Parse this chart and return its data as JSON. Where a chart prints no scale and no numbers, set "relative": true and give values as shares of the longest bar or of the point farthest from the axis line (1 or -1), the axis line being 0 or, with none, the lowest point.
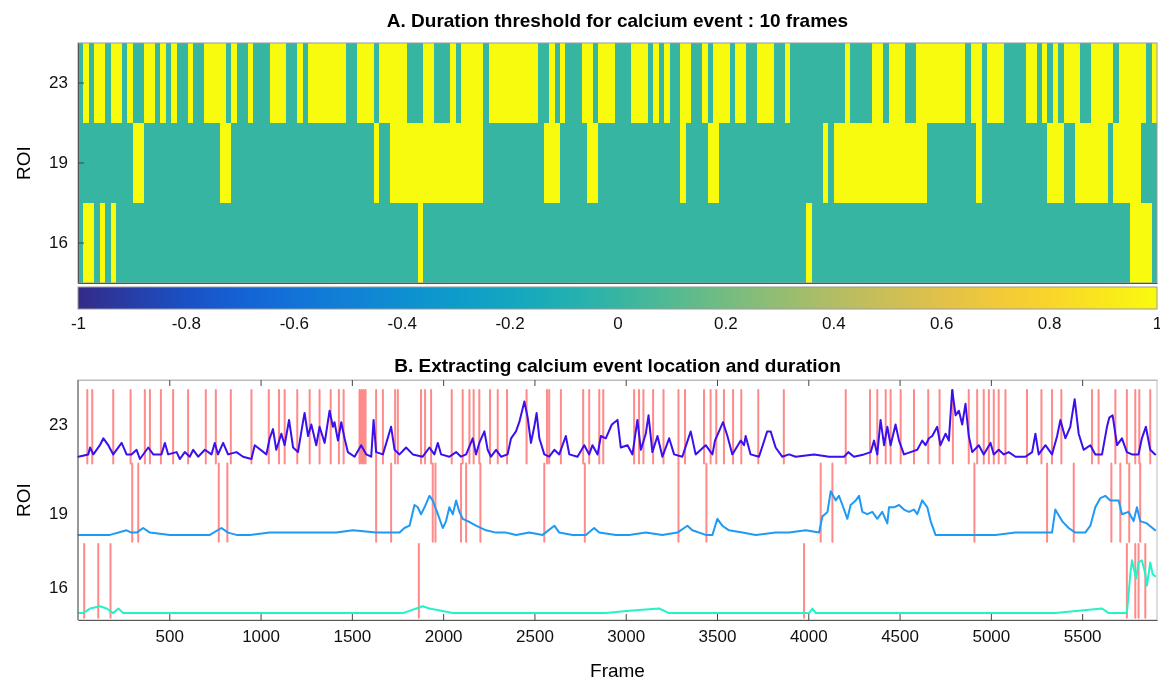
{
  "chart_data": [
    {
      "type": "heatmap",
      "title": "A. Duration threshold for calcium event : 10 frames",
      "ylabel": "ROI",
      "categories": [
        null,
        null,
        null,
        null,
        null,
        null,
        null,
        null,
        null,
        null,
        null,
        null,
        null,
        null,
        null,
        null,
        null,
        null,
        null,
        null,
        null,
        null,
        null,
        null,
        null,
        null,
        null,
        null,
        null,
        null,
        null,
        null,
        null,
        null,
        null,
        null,
        null,
        null,
        null,
        null,
        null,
        null,
        null,
        null,
        null,
        null,
        null,
        null,
        null,
        null,
        null,
        null,
        null,
        null,
        null,
        null,
        null,
        null,
        null,
        null,
        null,
        null,
        null,
        null,
        null,
        null,
        null,
        null,
        null,
        null,
        null,
        null,
        null,
        null,
        null,
        null,
        null,
        null,
        null,
        null,
        null,
        null,
        null,
        null,
        null,
        null,
        null,
        null,
        null,
        null,
        null,
        null,
        null,
        null,
        null,
        null,
        null,
        null,
        null,
        null,
        null,
        null,
        null,
        null,
        null,
        null,
        null,
        null,
        null,
        null,
        null,
        null,
        null,
        null,
        null,
        null,
        null,
        null,
        null,
        null,
        null,
        null,
        null,
        null,
        null,
        null,
        null,
        null,
        null,
        null,
        null,
        null,
        null,
        null,
        null,
        null,
        null,
        null,
        null,
        null,
        null,
        null,
        null,
        null,
        null,
        null,
        null,
        null,
        null,
        null,
        null,
        null,
        null,
        null,
        null,
        null,
        null,
        null,
        null,
        null,
        null,
        null,
        null,
        null,
        null,
        null,
        null,
        null,
        null,
        null,
        null,
        null,
        null,
        null,
        null,
        null,
        null,
        null,
        null,
        null,
        null,
        null,
        null,
        null,
        null,
        null,
        null,
        null,
        null,
        null,
        null,
        null,
        null,
        null,
        null,
        null,
        null
      ],
      "y_categories": [
        "23",
        "19",
        "16"
      ],
      "cells": [
        [
          0,
          1,
          0,
          1,
          1,
          0,
          1,
          1,
          0,
          1,
          0,
          0,
          1,
          1,
          0,
          1,
          0,
          1,
          0,
          0,
          1,
          0,
          0,
          1,
          1,
          1,
          1,
          0,
          1,
          0,
          0,
          1,
          0,
          0,
          0,
          1,
          1,
          1,
          0,
          0,
          1,
          0,
          1,
          1,
          1,
          1,
          1,
          1,
          1,
          0,
          0,
          1,
          1,
          1,
          0,
          1,
          1,
          1,
          1,
          1,
          0,
          0,
          0,
          1,
          1,
          0,
          0,
          0,
          1,
          0,
          1,
          1,
          1,
          1,
          0,
          1,
          1,
          1,
          1,
          1,
          1,
          1,
          1,
          1,
          0,
          0,
          1,
          0,
          1,
          0,
          0,
          0,
          1,
          1,
          0,
          1,
          1,
          1,
          0,
          0,
          0,
          1,
          1,
          1,
          0,
          1,
          0,
          1,
          0,
          0,
          1,
          1,
          0,
          0,
          1,
          0,
          1,
          1,
          1,
          0,
          1,
          1,
          0,
          0,
          1,
          1,
          1,
          0,
          0,
          1,
          0,
          0,
          0,
          0,
          0,
          0,
          0,
          0,
          0,
          0,
          1,
          0,
          0,
          0,
          0,
          1,
          1,
          0,
          1,
          1,
          1,
          0,
          0,
          1,
          1,
          1,
          1,
          1,
          1,
          1,
          1,
          1,
          0,
          1,
          1,
          0,
          1,
          1,
          1,
          0,
          0,
          0,
          0,
          1,
          1,
          0,
          1,
          0,
          1,
          0,
          1,
          1,
          1,
          0,
          0,
          1,
          1,
          1,
          1,
          0,
          1,
          1,
          1,
          1,
          1,
          0,
          1
        ],
        [
          0,
          0,
          0,
          0,
          0,
          0,
          0,
          0,
          0,
          0,
          1,
          1,
          0,
          0,
          0,
          0,
          0,
          0,
          0,
          0,
          0,
          0,
          0,
          0,
          0,
          0,
          1,
          1,
          0,
          0,
          0,
          0,
          0,
          0,
          0,
          0,
          0,
          0,
          0,
          0,
          0,
          0,
          0,
          0,
          0,
          0,
          0,
          0,
          0,
          0,
          0,
          0,
          0,
          0,
          1,
          0,
          0,
          1,
          1,
          1,
          1,
          1,
          1,
          1,
          1,
          1,
          1,
          1,
          1,
          1,
          1,
          1,
          1,
          1,
          0,
          0,
          0,
          0,
          0,
          0,
          0,
          0,
          0,
          0,
          0,
          1,
          1,
          1,
          0,
          0,
          0,
          0,
          0,
          1,
          1,
          0,
          0,
          0,
          0,
          0,
          0,
          0,
          0,
          0,
          0,
          0,
          0,
          0,
          0,
          0,
          1,
          0,
          0,
          0,
          0,
          1,
          1,
          0,
          0,
          0,
          0,
          0,
          0,
          0,
          0,
          0,
          0,
          0,
          0,
          0,
          0,
          0,
          0,
          0,
          0,
          0,
          1,
          0,
          1,
          1,
          1,
          1,
          1,
          1,
          1,
          1,
          1,
          1,
          1,
          1,
          1,
          1,
          1,
          1,
          1,
          0,
          0,
          0,
          0,
          0,
          0,
          0,
          0,
          0,
          1,
          0,
          0,
          0,
          0,
          0,
          0,
          0,
          0,
          0,
          0,
          0,
          0,
          1,
          1,
          1,
          0,
          0,
          1,
          1,
          1,
          1,
          1,
          1,
          0,
          1,
          1,
          1,
          1,
          1,
          0,
          0,
          0
        ],
        [
          0,
          1,
          1,
          0,
          1,
          0,
          1,
          0,
          0,
          0,
          0,
          0,
          0,
          0,
          0,
          0,
          0,
          0,
          0,
          0,
          0,
          0,
          0,
          0,
          0,
          0,
          0,
          0,
          0,
          0,
          0,
          0,
          0,
          0,
          0,
          0,
          0,
          0,
          0,
          0,
          0,
          0,
          0,
          0,
          0,
          0,
          0,
          0,
          0,
          0,
          0,
          0,
          0,
          0,
          0,
          0,
          0,
          0,
          0,
          0,
          0,
          0,
          1,
          0,
          0,
          0,
          0,
          0,
          0,
          0,
          0,
          0,
          0,
          0,
          0,
          0,
          0,
          0,
          0,
          0,
          0,
          0,
          0,
          0,
          0,
          0,
          0,
          0,
          0,
          0,
          0,
          0,
          0,
          0,
          0,
          0,
          0,
          0,
          0,
          0,
          0,
          0,
          0,
          0,
          0,
          0,
          0,
          0,
          0,
          0,
          0,
          0,
          0,
          0,
          0,
          0,
          0,
          0,
          0,
          0,
          0,
          0,
          0,
          0,
          0,
          0,
          0,
          0,
          0,
          0,
          0,
          0,
          0,
          1,
          0,
          0,
          0,
          0,
          0,
          0,
          0,
          0,
          0,
          0,
          0,
          0,
          0,
          0,
          0,
          0,
          0,
          0,
          0,
          0,
          0,
          0,
          0,
          0,
          0,
          0,
          0,
          0,
          0,
          0,
          0,
          0,
          0,
          0,
          0,
          0,
          0,
          0,
          0,
          0,
          0,
          0,
          0,
          0,
          0,
          0,
          0,
          0,
          0,
          0,
          0,
          0,
          0,
          0,
          0,
          0,
          0,
          0,
          1,
          1,
          1,
          1,
          0
        ]
      ],
      "clim": [
        -1,
        1
      ],
      "cticks": [
        -1,
        -0.8,
        -0.6,
        -0.4,
        -0.2,
        0,
        0.2,
        0.4,
        0.6,
        0.8,
        1
      ]
    },
    {
      "type": "line",
      "title": "B. Extracting calcium event location and duration",
      "xlabel": "Frame",
      "ylabel": "ROI",
      "relative": true,
      "xlim": [
        0,
        5910
      ],
      "xticks": [
        500,
        1000,
        1500,
        2000,
        2500,
        3000,
        3500,
        4000,
        4500,
        5000,
        5500
      ],
      "series": [
        {
          "color": "#ff8a8a",
          "x": [
            51,
            51,
            null,
            78,
            78,
            null,
            193,
            193,
            null,
            288,
            288,
            null,
            366,
            366,
            null,
            394,
            394,
            null,
            454,
            454,
            null,
            521,
            521,
            null,
            603,
            603,
            null,
            700,
            700,
            null,
            755,
            755,
            null,
            837,
            837,
            null,
            950,
            950,
            null,
            1045,
            1045,
            null,
            1101,
            1101,
            null,
            1132,
            1132,
            null,
            1201,
            1201,
            null,
            1269,
            1269,
            null,
            1323,
            1323,
            null,
            1384,
            1384,
            null,
            1429,
            1429,
            null,
            1455,
            1455,
            null,
            1542,
            1542,
            null,
            1553,
            1553,
            null,
            1564,
            1564,
            null,
            1575,
            1575,
            null,
            1633,
            1633,
            null,
            1670,
            1670,
            null,
            1737,
            1737,
            null,
            1752,
            1752,
            null,
            1879,
            1879,
            null,
            1901,
            1901,
            null,
            1934,
            1934,
            null,
            2047,
            2047,
            null,
            2107,
            2107,
            null,
            2144,
            2144,
            null,
            2167,
            2167,
            null,
            2198,
            2198,
            null,
            2257,
            2257,
            null,
            2299,
            2299,
            null,
            2350,
            2350,
            null,
            2457,
            2457,
            null,
            2569,
            2569,
            null,
            2581,
            2581,
            null,
            2645,
            2645,
            null,
            2767,
            2767,
            null,
            2800,
            2800,
            null,
            2855,
            2855,
            null,
            2877,
            2877,
            null,
            3046,
            3046,
            null,
            3073,
            3073,
            null,
            3097,
            3097,
            null,
            3150,
            3150,
            null,
            3207,
            3207,
            null,
            3289,
            3289,
            null,
            3325,
            3325,
            null,
            3429,
            3429,
            null,
            3465,
            3465,
            null,
            3496,
            3496,
            null,
            3538,
            3538,
            null,
            3588,
            3588,
            null,
            3633,
            3633,
            null,
            3726,
            3726,
            null,
            3866,
            3866,
            null,
            4205,
            4205,
            null,
            4338,
            4338,
            null,
            4378,
            4378,
            null,
            4424,
            4424,
            null,
            4451,
            4451,
            null,
            4506,
            4506,
            null,
            4579,
            4579,
            null,
            4657,
            4657,
            null,
            4719,
            4719,
            null,
            4792,
            4792,
            null,
            4879,
            4879,
            null,
            4925,
            4925,
            null,
            4961,
            4961,
            null,
            4989,
            4989,
            null,
            5016,
            5016,
            null,
            5043,
            5043,
            null,
            5080,
            5080,
            null,
            5198,
            5198,
            null,
            5277,
            5277,
            null,
            5335,
            5335,
            null,
            5386,
            5386,
            null,
            5554,
            5554,
            null,
            5590,
            5590,
            null,
            5682,
            5682,
            null,
            5745,
            5745,
            null,
            5791,
            5791,
            null,
            5813,
            5813,
            null,
            5873,
            5873
          ],
          "values": [
            0.68,
            1,
            null,
            0.68,
            1,
            null,
            0.68,
            1,
            null,
            0.68,
            1,
            null,
            0.68,
            1,
            null,
            0.68,
            1,
            null,
            0.68,
            1,
            null,
            0.68,
            1,
            null,
            0.68,
            1,
            null,
            0.68,
            1,
            null,
            0.68,
            1,
            null,
            0.68,
            1,
            null,
            0.68,
            1,
            null,
            0.68,
            1,
            null,
            0.68,
            1,
            null,
            0.68,
            1,
            null,
            0.68,
            1,
            null,
            0.68,
            1,
            null,
            0.68,
            1,
            null,
            0.68,
            1,
            null,
            0.68,
            1,
            null,
            0.68,
            1,
            null,
            0.68,
            1,
            null,
            0.68,
            1,
            null,
            0.68,
            1,
            null,
            0.68,
            1,
            null,
            0.68,
            1,
            null,
            0.68,
            1,
            null,
            0.68,
            1,
            null,
            0.68,
            1,
            null,
            0.68,
            1,
            null,
            0.68,
            1,
            null,
            0.68,
            1,
            null,
            0.68,
            1,
            null,
            0.68,
            1,
            null,
            0.68,
            1,
            null,
            0.68,
            1,
            null,
            0.68,
            1,
            null,
            0.68,
            1,
            null,
            0.68,
            1,
            null,
            0.68,
            1,
            null,
            0.68,
            1,
            null,
            0.68,
            1,
            null,
            0.68,
            1,
            null,
            0.68,
            1,
            null,
            0.68,
            1,
            null,
            0.68,
            1,
            null,
            0.68,
            1,
            null,
            0.68,
            1,
            null,
            0.68,
            1,
            null,
            0.68,
            1,
            null,
            0.68,
            1,
            null,
            0.68,
            1,
            null,
            0.68,
            1,
            null,
            0.68,
            1,
            null,
            0.68,
            1,
            null,
            0.68,
            1,
            null,
            0.68,
            1,
            null,
            0.68,
            1,
            null,
            0.68,
            1,
            null,
            0.68,
            1,
            null,
            0.68,
            1,
            null,
            0.68,
            1,
            null,
            0.68,
            1,
            null,
            0.68,
            1,
            null,
            0.68,
            1,
            null,
            0.68,
            1,
            null,
            0.68,
            1,
            null,
            0.68,
            1,
            null,
            0.68,
            1,
            null,
            0.68,
            1,
            null,
            0.68,
            1,
            null,
            0.68,
            1,
            null,
            0.68,
            1,
            null,
            0.68,
            1,
            null,
            0.68,
            1,
            null,
            0.68,
            1,
            null,
            0.68,
            1,
            null,
            0.68,
            1,
            null,
            0.68,
            1,
            null,
            0.68,
            1,
            null,
            0.68,
            1,
            null,
            0.68,
            1,
            null,
            0.68,
            1,
            null,
            0.68,
            1,
            null,
            0.68,
            1,
            null,
            0.68,
            1,
            null,
            0.68,
            1,
            null,
            0.68,
            1,
            null,
            0.68,
            1,
            null,
            0.68,
            1,
            null,
            0.68,
            1
          ]
        },
        {
          "color": "#ff8a8a",
          "x": [
            297,
            297,
            null,
            330,
            330,
            null,
            771,
            771,
            null,
            818,
            818,
            null,
            1633,
            1633,
            null,
            1715,
            1715,
            null,
            1943,
            1943,
            null,
            1958,
            1958,
            null,
            2098,
            2098,
            null,
            2126,
            2126,
            null,
            2204,
            2204,
            null,
            2554,
            2554,
            null,
            2776,
            2776,
            null,
            3289,
            3289,
            null,
            3442,
            3442,
            null,
            4068,
            4068,
            null,
            4132,
            4132,
            null,
            4910,
            4910,
            null,
            5308,
            5308,
            null,
            5454,
            5454,
            null,
            5660,
            5660,
            null,
            5709,
            5709,
            null,
            5758,
            5758,
            null,
            5818,
            5818
          ],
          "values": [
            0.34,
            0.68,
            null,
            0.34,
            0.68,
            null,
            0.34,
            0.68,
            null,
            0.34,
            0.68,
            null,
            0.34,
            0.68,
            null,
            0.34,
            0.68,
            null,
            0.34,
            0.68,
            null,
            0.34,
            0.68,
            null,
            0.34,
            0.68,
            null,
            0.34,
            0.68,
            null,
            0.34,
            0.68,
            null,
            0.34,
            0.68,
            null,
            0.34,
            0.68,
            null,
            0.34,
            0.68,
            null,
            0.34,
            0.68,
            null,
            0.34,
            0.68,
            null,
            0.34,
            0.68,
            null,
            0.34,
            0.68,
            null,
            0.34,
            0.68,
            null,
            0.34,
            0.68,
            null,
            0.34,
            0.68,
            null,
            0.34,
            0.68,
            null,
            0.34,
            0.68,
            null,
            0.34,
            0.68
          ]
        },
        {
          "color": "#ff8a8a",
          "x": [
            34,
            34,
            null,
            111,
            111,
            null,
            178,
            178,
            null,
            1867,
            1867,
            null,
            3977,
            3977,
            null,
            5745,
            5745,
            null,
            5791,
            5791,
            null,
            5809,
            5809,
            null,
            5846,
            5846
          ],
          "values": [
            0.01,
            0.33,
            null,
            0.01,
            0.33,
            null,
            0.01,
            0.33,
            null,
            0.01,
            0.33,
            null,
            0.01,
            0.33,
            null,
            0.01,
            0.33,
            null,
            0.01,
            0.33,
            null,
            0.01,
            0.33,
            null,
            0.01,
            0.33
          ]
        },
        {
          "name": "23",
          "color": "#3a10ee",
          "x": [
            2,
            56,
            66,
            84,
            120,
            139,
            166,
            193,
            239,
            266,
            293,
            321,
            339,
            385,
            412,
            457,
            476,
            494,
            540,
            558,
            585,
            612,
            631,
            658,
            695,
            731,
            749,
            767,
            795,
            822,
            868,
            904,
            950,
            968,
            1032,
            1050,
            1068,
            1086,
            1114,
            1132,
            1156,
            1178,
            1205,
            1232,
            1241,
            1260,
            1278,
            1305,
            1323,
            1351,
            1378,
            1396,
            1405,
            1424,
            1442,
            1460,
            1478,
            1515,
            1551,
            1579,
            1606,
            1619,
            1633,
            1670,
            1715,
            1734,
            1761,
            1797,
            1834,
            1888,
            1925,
            1952,
            1971,
            1989,
            2034,
            2071,
            2098,
            2126,
            2162,
            2180,
            2198,
            2226,
            2244,
            2262,
            2290,
            2317,
            2353,
            2372,
            2399,
            2417,
            2445,
            2463,
            2481,
            2499,
            2512,
            2527,
            2554,
            2581,
            2609,
            2636,
            2672,
            2691,
            2736,
            2773,
            2800,
            2818,
            2846,
            2864,
            2891,
            2924,
            2955,
            2973,
            3010,
            3037,
            3064,
            3083,
            3110,
            3125,
            3146,
            3174,
            3201,
            3238,
            3265,
            3310,
            3356,
            3383,
            3438,
            3475,
            3489,
            3533,
            3557,
            3584,
            3630,
            3648,
            3657,
            3684,
            3730,
            3775,
            3794,
            3821,
            3857,
            3895,
            3931,
            4032,
            4114,
            4196,
            4219,
            4250,
            4305,
            4342,
            4360,
            4378,
            4396,
            4415,
            4433,
            4451,
            4478,
            4497,
            4524,
            4560,
            4597,
            4624,
            4642,
            4661,
            4679,
            4706,
            4724,
            4752,
            4770,
            4788,
            4807,
            4825,
            4843,
            4861,
            4879,
            4898,
            4934,
            4961,
            4998,
            5016,
            5043,
            5071,
            5098,
            5135,
            5189,
            5226,
            5244,
            5262,
            5299,
            5335,
            5363,
            5381,
            5408,
            5435,
            5459,
            5481,
            5508,
            5545,
            5572,
            5609,
            5636,
            5649,
            5667,
            5691,
            5718,
            5745,
            5773,
            5809,
            5827,
            5849,
            5873,
            5900
          ],
          "values": [
            0.71,
            0.72,
            0.75,
            0.72,
            0.76,
            0.79,
            0.76,
            0.72,
            0.77,
            0.72,
            0.72,
            0.74,
            0.7,
            0.75,
            0.72,
            0.72,
            0.77,
            0.72,
            0.73,
            0.7,
            0.73,
            0.71,
            0.74,
            0.71,
            0.74,
            0.72,
            0.77,
            0.72,
            0.77,
            0.72,
            0.73,
            0.71,
            0.7,
            0.76,
            0.72,
            0.79,
            0.83,
            0.74,
            0.81,
            0.76,
            0.87,
            0.75,
            0.73,
            0.86,
            0.9,
            0.8,
            0.85,
            0.76,
            0.84,
            0.77,
            0.91,
            0.84,
            0.86,
            0.78,
            0.86,
            0.79,
            0.73,
            0.71,
            0.76,
            0.72,
            0.71,
            0.87,
            0.73,
            0.72,
            0.84,
            0.74,
            0.72,
            0.75,
            0.72,
            0.71,
            0.75,
            0.72,
            0.77,
            0.72,
            0.71,
            0.73,
            0.71,
            0.72,
            0.79,
            0.72,
            0.77,
            0.82,
            0.74,
            0.71,
            0.74,
            0.71,
            0.72,
            0.79,
            0.82,
            0.86,
            0.95,
            0.88,
            0.77,
            0.84,
            0.9,
            0.79,
            0.72,
            0.71,
            0.74,
            0.72,
            0.8,
            0.72,
            0.71,
            0.76,
            0.72,
            0.76,
            0.72,
            0.8,
            0.79,
            0.85,
            0.87,
            0.75,
            0.76,
            0.72,
            0.87,
            0.74,
            0.81,
            0.89,
            0.73,
            0.8,
            0.71,
            0.79,
            0.72,
            0.71,
            0.82,
            0.72,
            0.76,
            0.72,
            0.78,
            0.86,
            0.8,
            0.72,
            0.78,
            0.76,
            0.8,
            0.72,
            0.71,
            0.82,
            0.82,
            0.75,
            0.71,
            0.72,
            0.71,
            0.72,
            0.71,
            0.71,
            0.73,
            0.71,
            0.72,
            0.73,
            0.78,
            0.72,
            0.87,
            0.76,
            0.84,
            0.76,
            0.85,
            0.78,
            0.72,
            0.73,
            0.74,
            0.78,
            0.76,
            0.79,
            0.8,
            0.84,
            0.76,
            0.81,
            0.78,
            1,
            0.89,
            0.91,
            0.85,
            0.94,
            0.8,
            0.73,
            0.76,
            0.72,
            0.77,
            0.72,
            0.74,
            0.72,
            0.73,
            0.71,
            0.71,
            0.73,
            0.81,
            0.72,
            0.76,
            0.72,
            0.8,
            0.87,
            0.79,
            0.84,
            0.96,
            0.81,
            0.74,
            0.76,
            0.72,
            0.72,
            0.84,
            0.88,
            0.89,
            0.76,
            0.79,
            0.73,
            0.72,
            0.72,
            0.79,
            0.84,
            0.74,
            0.72
          ]
        },
        {
          "name": "19",
          "color": "#1e9af5",
          "x": [
            2,
            66,
            175,
            266,
            293,
            321,
            357,
            394,
            503,
            594,
            722,
            786,
            822,
            868,
            941,
            1050,
            1232,
            1414,
            1506,
            1633,
            1761,
            1788,
            1816,
            1843,
            1861,
            1879,
            1898,
            1925,
            1943,
            1971,
            1998,
            2016,
            2034,
            2053,
            2071,
            2089,
            2107,
            2135,
            2180,
            2235,
            2290,
            2344,
            2399,
            2472,
            2545,
            2609,
            2636,
            2709,
            2782,
            2827,
            2855,
            2946,
            3019,
            3110,
            3201,
            3283,
            3338,
            3365,
            3438,
            3475,
            3502,
            3529,
            3566,
            3639,
            3712,
            3821,
            3895,
            3986,
            4059,
            4077,
            4105,
            4123,
            4150,
            4168,
            4187,
            4214,
            4232,
            4260,
            4278,
            4296,
            4323,
            4351,
            4378,
            4405,
            4433,
            4442,
            4469,
            4497,
            4524,
            4551,
            4579,
            4597,
            4624,
            4652,
            4670,
            4697,
            4807,
            4916,
            5025,
            5135,
            5244,
            5335,
            5353,
            5390,
            5426,
            5463,
            5517,
            5545,
            5572,
            5600,
            5627,
            5654,
            5672,
            5700,
            5718,
            5754,
            5782,
            5800,
            5818,
            5855,
            5900
          ],
          "values": [
            0.37,
            0.37,
            0.37,
            0.39,
            0.38,
            0.38,
            0.4,
            0.38,
            0.37,
            0.37,
            0.37,
            0.4,
            0.38,
            0.37,
            0.37,
            0.38,
            0.38,
            0.38,
            0.39,
            0.38,
            0.38,
            0.4,
            0.41,
            0.5,
            0.49,
            0.46,
            0.49,
            0.54,
            0.52,
            0.46,
            0.4,
            0.43,
            0.49,
            0.46,
            0.52,
            0.47,
            0.44,
            0.43,
            0.41,
            0.39,
            0.38,
            0.38,
            0.37,
            0.38,
            0.37,
            0.41,
            0.38,
            0.37,
            0.37,
            0.4,
            0.38,
            0.37,
            0.37,
            0.38,
            0.37,
            0.38,
            0.41,
            0.39,
            0.37,
            0.37,
            0.44,
            0.41,
            0.39,
            0.38,
            0.37,
            0.38,
            0.38,
            0.39,
            0.38,
            0.45,
            0.47,
            0.56,
            0.52,
            0.54,
            0.5,
            0.44,
            0.5,
            0.52,
            0.54,
            0.47,
            0.46,
            0.47,
            0.44,
            0.47,
            0.42,
            0.49,
            0.49,
            0.5,
            0.48,
            0.47,
            0.48,
            0.46,
            0.52,
            0.49,
            0.43,
            0.37,
            0.37,
            0.37,
            0.37,
            0.38,
            0.38,
            0.38,
            0.48,
            0.43,
            0.4,
            0.38,
            0.38,
            0.41,
            0.49,
            0.53,
            0.54,
            0.52,
            0.52,
            0.52,
            0.46,
            0.47,
            0.43,
            0.49,
            0.43,
            0.42,
            0.39
          ]
        },
        {
          "name": "16",
          "color": "#26f2c8",
          "x": [
            2,
            29,
            66,
            120,
            157,
            193,
            221,
            248,
            412,
            503,
            685,
            904,
            977,
            1232,
            1414,
            1597,
            1779,
            1888,
            1925,
            2053,
            2290,
            2472,
            2654,
            2891,
            3019,
            3183,
            3238,
            3383,
            3566,
            3748,
            3895,
            4004,
            4023,
            4041,
            4260,
            4442,
            4624,
            4807,
            4989,
            5171,
            5353,
            5609,
            5645,
            5745,
            5764,
            5773,
            5795,
            5809,
            5827,
            5846,
            5855,
            5873,
            5886,
            5900
          ],
          "values": [
            0.03,
            0.03,
            0.05,
            0.06,
            0.05,
            0.03,
            0.05,
            0.03,
            0.03,
            0.03,
            0.03,
            0.03,
            0.03,
            0.03,
            0.03,
            0.03,
            0.03,
            0.06,
            0.05,
            0.03,
            0.03,
            0.03,
            0.03,
            0.03,
            0.04,
            0.05,
            0.03,
            0.03,
            0.03,
            0.03,
            0.03,
            0.03,
            0.05,
            0.03,
            0.03,
            0.03,
            0.03,
            0.03,
            0.03,
            0.03,
            0.03,
            0.05,
            0.03,
            0.03,
            0.2,
            0.26,
            0.18,
            0.25,
            0.26,
            0.2,
            0.15,
            0.25,
            0.2,
            0.19
          ]
        }
      ]
    }
  ]
}
